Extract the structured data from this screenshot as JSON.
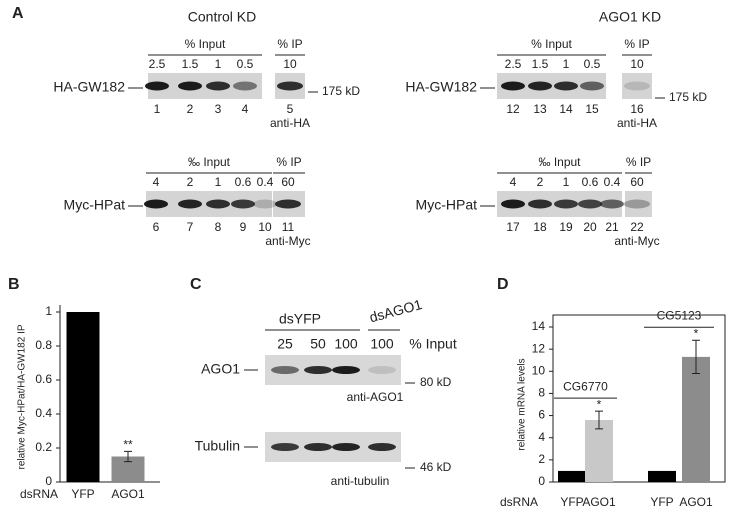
{
  "panel_a": {
    "label": "A",
    "sides": [
      {
        "title": "Control KD",
        "blots": [
          {
            "input_header": "% Input",
            "ip_header": "% IP",
            "amounts": [
              "2.5",
              "1.5",
              "1",
              "0.5"
            ],
            "ip_amount": "10",
            "row_label": "HA-GW182",
            "lanes": [
              "1",
              "2",
              "3",
              "4"
            ],
            "ip_lane": "5",
            "antibody": "anti-HA",
            "marker": "175 kD"
          },
          {
            "input_header": "‰ Input",
            "ip_header": "% IP",
            "amounts": [
              "4",
              "2",
              "1",
              "0.6",
              "0.4"
            ],
            "ip_amount": "60",
            "row_label": "Myc-HPat",
            "lanes": [
              "6",
              "7",
              "8",
              "9",
              "10"
            ],
            "ip_lane": "11",
            "antibody": "anti-Myc"
          }
        ]
      },
      {
        "title": "AGO1 KD",
        "blots": [
          {
            "input_header": "% Input",
            "ip_header": "% IP",
            "amounts": [
              "2.5",
              "1.5",
              "1",
              "0.5"
            ],
            "ip_amount": "10",
            "row_label": "HA-GW182",
            "lanes": [
              "12",
              "13",
              "14",
              "15"
            ],
            "ip_lane": "16",
            "antibody": "anti-HA",
            "marker": "175 kD"
          },
          {
            "input_header": "‰ Input",
            "ip_header": "% IP",
            "amounts": [
              "4",
              "2",
              "1",
              "0.6",
              "0.4"
            ],
            "ip_amount": "60",
            "row_label": "Myc-HPat",
            "lanes": [
              "17",
              "18",
              "19",
              "20",
              "21"
            ],
            "ip_lane": "22",
            "antibody": "anti-Myc"
          }
        ]
      }
    ]
  },
  "panel_c": {
    "label": "C",
    "groups": [
      {
        "name": "dsYFP",
        "amounts": [
          "25",
          "50",
          "100"
        ]
      },
      {
        "name": "dsAGO1",
        "amounts": [
          "100"
        ]
      }
    ],
    "amount_unit": "% Input",
    "blots": [
      {
        "row_label": "AGO1",
        "marker": "80 kD",
        "antibody": "anti-AGO1"
      },
      {
        "row_label": "Tubulin",
        "marker": "46 kD",
        "antibody": "anti-tubulin"
      }
    ]
  },
  "chart_data": [
    {
      "type": "bar",
      "label": "B",
      "y_label": "relative Myc-HPat/HA-GW182 IP",
      "x_label": "dsRNA",
      "categories": [
        "YFP",
        "AGO1"
      ],
      "values": [
        1,
        0.15
      ],
      "errors": [
        null,
        0.03
      ],
      "significance": [
        null,
        "**"
      ],
      "colors": [
        "#000000",
        "#8c8c8c"
      ],
      "ylim": [
        0,
        1
      ],
      "yticks": [
        0,
        0.2,
        0.4,
        0.6,
        0.8,
        1
      ]
    },
    {
      "type": "bar",
      "label": "D",
      "y_label": "relative mRNA levels",
      "x_label": "dsRNA",
      "categories": [
        "YFP",
        "AGO1",
        "YFP",
        "AGO1"
      ],
      "groups": [
        "CG6770",
        "CG5123"
      ],
      "values": [
        1,
        5.6,
        1,
        11.3
      ],
      "errors": [
        null,
        0.8,
        null,
        1.5
      ],
      "significance": [
        null,
        "*",
        null,
        "*"
      ],
      "colors": [
        "#000000",
        "#c8c8c8",
        "#000000",
        "#8c8c8c"
      ],
      "ylim": [
        0,
        14
      ],
      "yticks": [
        0,
        2,
        4,
        6,
        8,
        10,
        12,
        14
      ]
    }
  ]
}
